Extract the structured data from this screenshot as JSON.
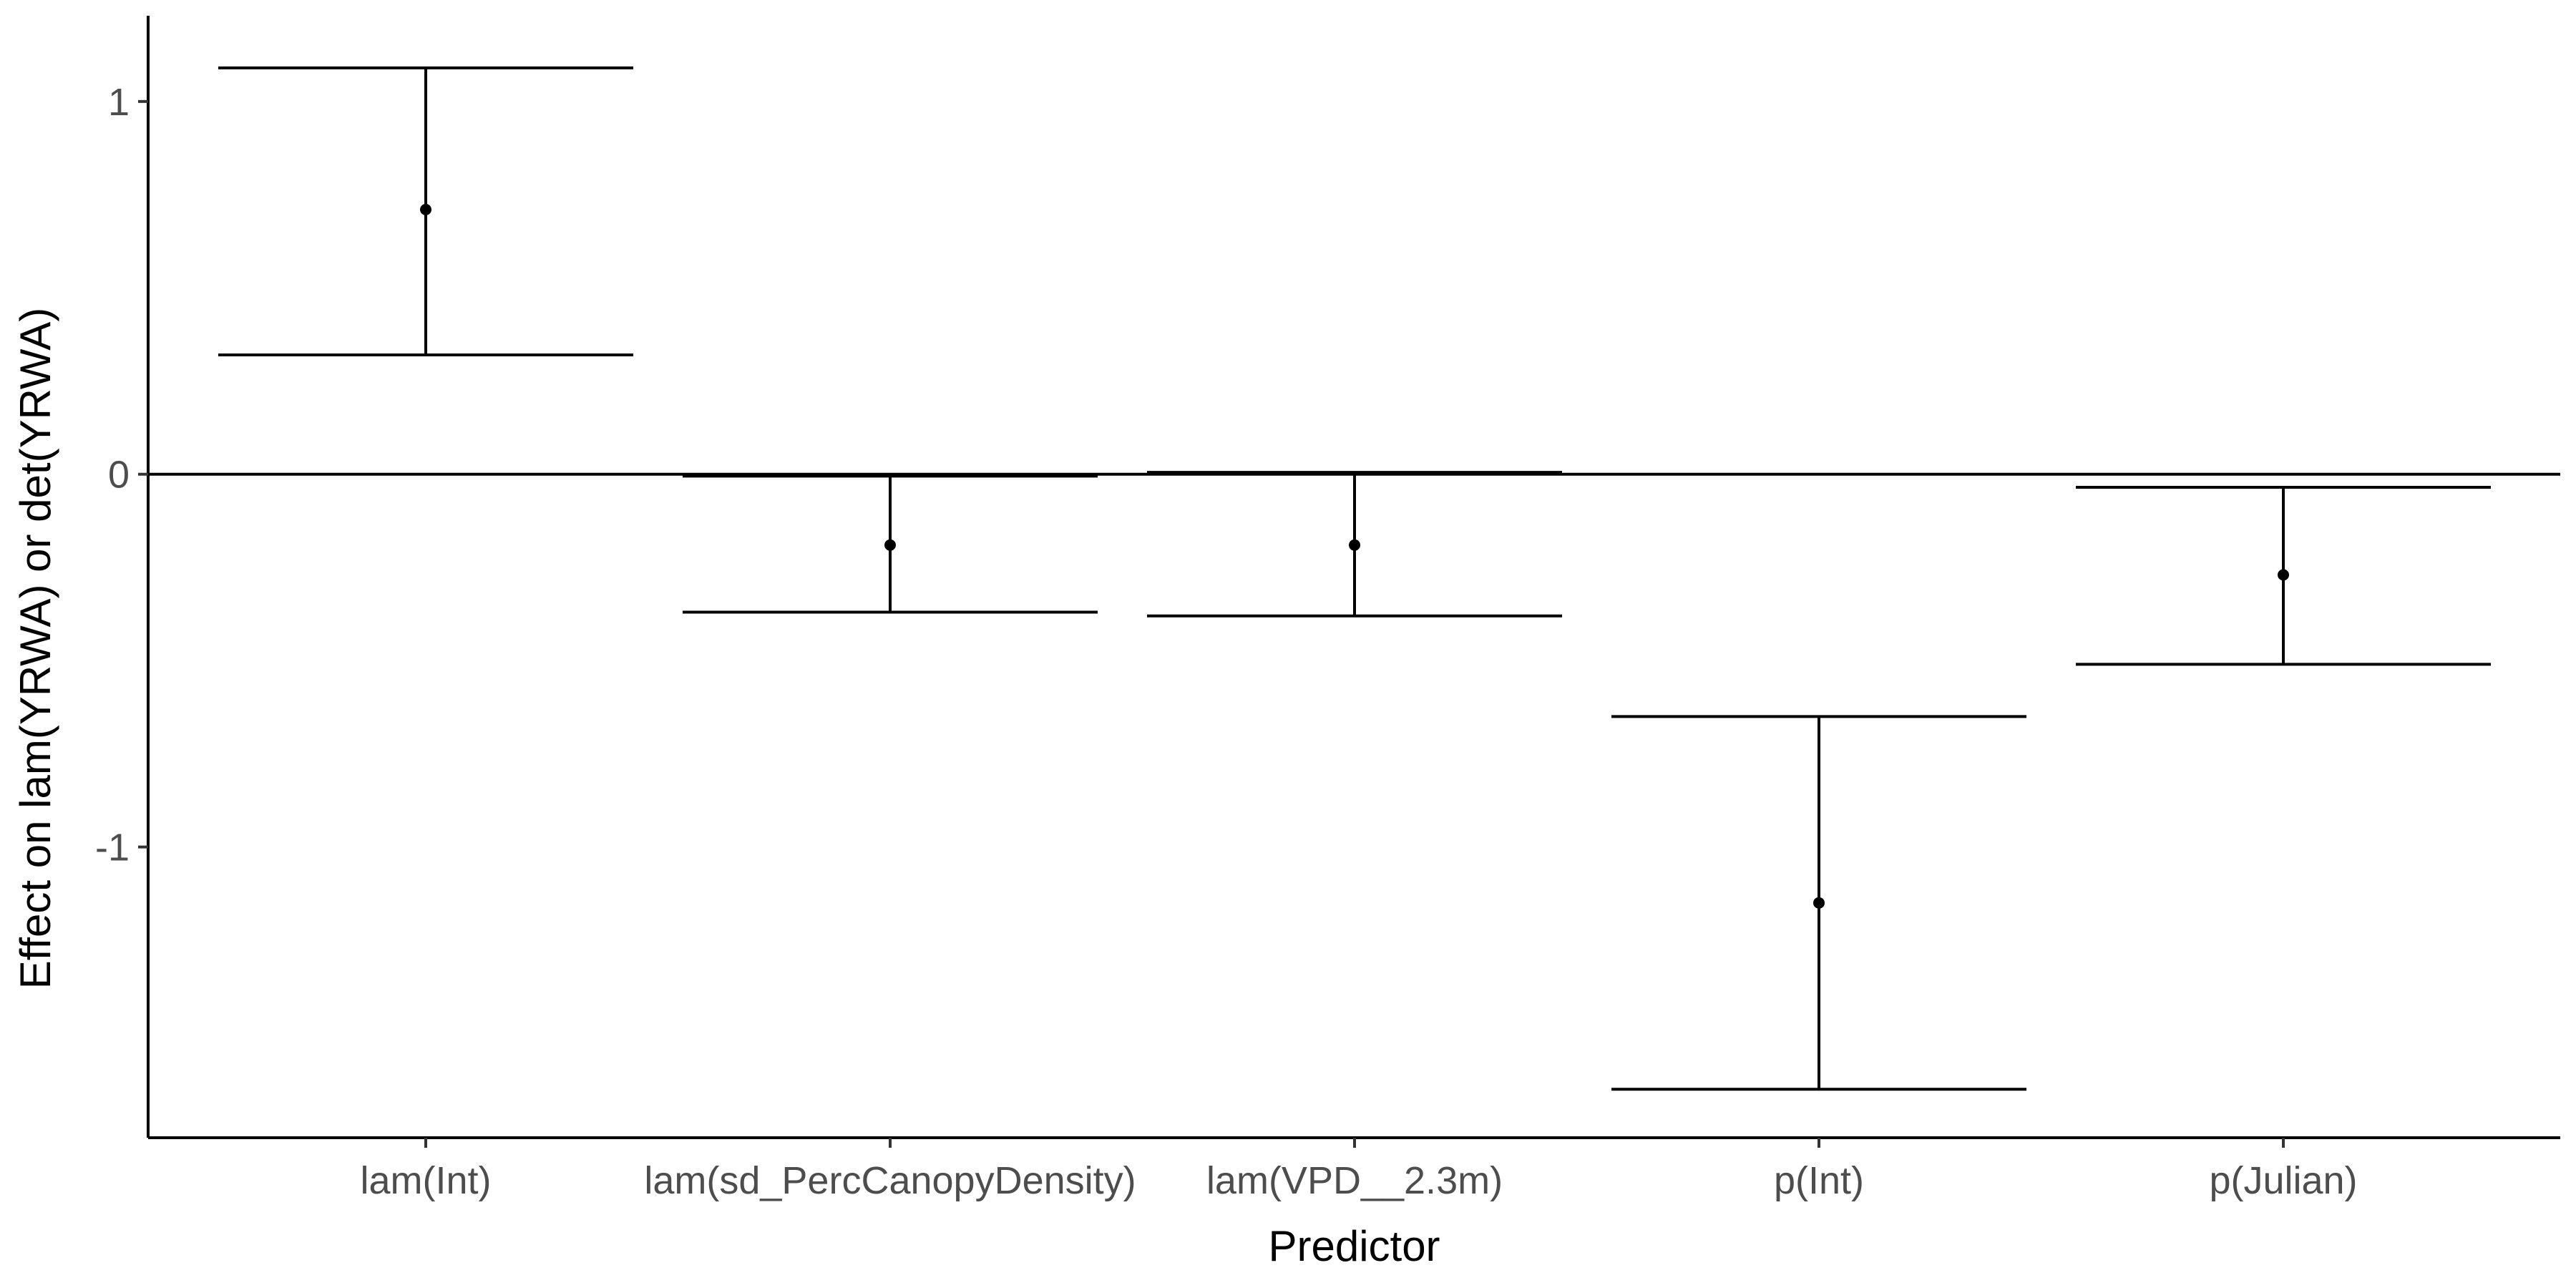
{
  "chart_data": {
    "type": "errorbar",
    "title": "",
    "xlabel": "Predictor",
    "ylabel": "Effect on lam(YRWA) or det(YRWA)",
    "ylim": [
      -1.78,
      1.23
    ],
    "yticks": [
      1,
      0,
      -1
    ],
    "ytick_labels": [
      "1",
      "0",
      "-1"
    ],
    "reference_line_y": 0,
    "grid": false,
    "legend": "none",
    "categories": [
      "lam(Int)",
      "lam(sd_PercCanopyDensity)",
      "lam(VPD__2.3m)",
      "p(Int)",
      "p(Julian)"
    ],
    "series": [
      {
        "estimate": [
          0.71,
          -0.19,
          -0.19,
          -1.15,
          -0.27
        ],
        "lower": [
          0.32,
          -0.37,
          -0.38,
          -1.65,
          -0.51
        ],
        "upper": [
          1.09,
          -0.005,
          0.005,
          -0.65,
          -0.035
        ]
      }
    ]
  }
}
